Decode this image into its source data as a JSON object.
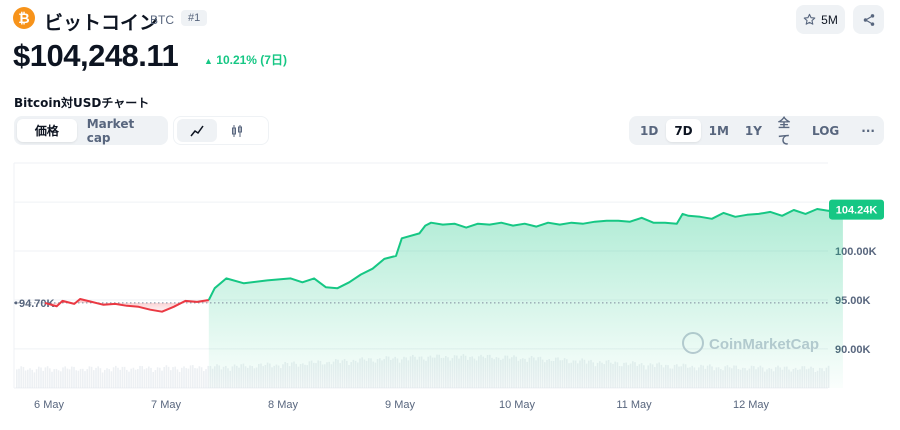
{
  "coin": {
    "logo_glyph": "₿",
    "name": "ビットコイン",
    "symbol": "BTC",
    "rank": "#1"
  },
  "header": {
    "watchlist_count": "5M"
  },
  "price": {
    "value": "$104,248.11",
    "change": "10.21% (7日)"
  },
  "chart_title": "Bitcoin対USDチャート",
  "tabs": {
    "type": [
      {
        "label": "価格",
        "active": true
      },
      {
        "label": "Market cap",
        "active": false
      }
    ],
    "view": [
      {
        "icon": "line-chart-icon",
        "active": true
      },
      {
        "icon": "candlestick-icon",
        "active": false
      }
    ],
    "range": [
      {
        "label": "1D",
        "active": false
      },
      {
        "label": "7D",
        "active": true
      },
      {
        "label": "1M",
        "active": false
      },
      {
        "label": "1Y",
        "active": false
      },
      {
        "label": "全て",
        "active": false
      },
      {
        "label": "LOG",
        "active": false
      },
      {
        "label": "···",
        "active": false
      }
    ]
  },
  "colors": {
    "up": "#16c784",
    "down": "#ea3943",
    "accent": "#16c784",
    "btc": "#f7931a"
  },
  "watermark": "CoinMarketCap",
  "chart_data": {
    "type": "line",
    "x": [
      "6 May",
      "7 May",
      "8 May",
      "9 May",
      "10 May",
      "11 May",
      "12 May"
    ],
    "x_tick_labels": [
      "6 May",
      "7 May",
      "8 May",
      "9 May",
      "10 May",
      "11 May",
      "12 May"
    ],
    "y_tick_labels": [
      "100.00K",
      "95.00K",
      "90.00K"
    ],
    "y_ticks": [
      100000,
      95000,
      90000
    ],
    "ylim": [
      86000,
      109000
    ],
    "baseline": {
      "value": 94700,
      "label": "94.70K"
    },
    "current": {
      "value": 104240,
      "label": "104.24K"
    },
    "series": [
      {
        "values": [
          [
            0.0,
            94700
          ],
          [
            0.1,
            94350
          ],
          [
            0.15,
            94900
          ],
          [
            0.25,
            94600
          ],
          [
            0.3,
            95100
          ],
          [
            0.4,
            94800
          ],
          [
            0.5,
            94500
          ],
          [
            0.6,
            94600
          ],
          [
            0.7,
            94400
          ],
          [
            0.8,
            94300
          ],
          [
            0.9,
            94000
          ],
          [
            1.0,
            93800
          ],
          [
            1.1,
            94300
          ],
          [
            1.2,
            94900
          ],
          [
            1.3,
            94800
          ],
          [
            1.4,
            95000
          ],
          [
            1.45,
            96200
          ],
          [
            1.55,
            97200
          ],
          [
            1.7,
            96700
          ],
          [
            1.9,
            97000
          ],
          [
            2.1,
            97200
          ],
          [
            2.2,
            96800
          ],
          [
            2.3,
            97200
          ],
          [
            2.4,
            96300
          ],
          [
            2.5,
            96200
          ],
          [
            2.6,
            96800
          ],
          [
            2.7,
            97600
          ],
          [
            2.8,
            98200
          ],
          [
            2.9,
            99200
          ],
          [
            3.0,
            99500
          ],
          [
            3.05,
            101300
          ],
          [
            3.2,
            101800
          ],
          [
            3.25,
            102600
          ],
          [
            3.3,
            102900
          ],
          [
            3.4,
            102700
          ],
          [
            3.5,
            102800
          ],
          [
            3.6,
            102400
          ],
          [
            3.7,
            102800
          ],
          [
            3.8,
            102700
          ],
          [
            3.9,
            102900
          ],
          [
            4.0,
            102600
          ],
          [
            4.1,
            102800
          ],
          [
            4.2,
            102500
          ],
          [
            4.3,
            102900
          ],
          [
            4.4,
            102700
          ],
          [
            4.5,
            102900
          ],
          [
            4.6,
            102800
          ],
          [
            4.7,
            103000
          ],
          [
            4.8,
            103100
          ],
          [
            4.9,
            103100
          ],
          [
            5.0,
            103000
          ],
          [
            5.1,
            103400
          ],
          [
            5.2,
            102900
          ],
          [
            5.3,
            102900
          ],
          [
            5.4,
            102800
          ],
          [
            5.45,
            103800
          ],
          [
            5.5,
            103600
          ],
          [
            5.6,
            103500
          ],
          [
            5.7,
            103300
          ],
          [
            5.8,
            103900
          ],
          [
            5.9,
            103500
          ],
          [
            6.0,
            103700
          ],
          [
            6.1,
            103800
          ],
          [
            6.2,
            104000
          ],
          [
            6.3,
            103600
          ],
          [
            6.4,
            104200
          ],
          [
            6.5,
            103800
          ],
          [
            6.6,
            104300
          ],
          [
            6.7,
            104100
          ],
          [
            6.78,
            104900
          ],
          [
            6.82,
            104240
          ]
        ]
      }
    ]
  }
}
